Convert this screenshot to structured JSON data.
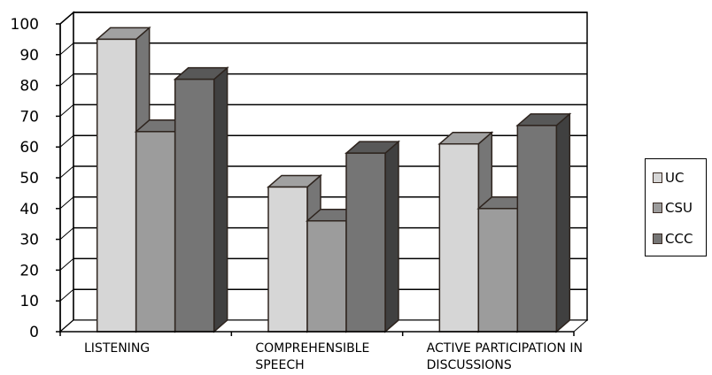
{
  "chart_data": {
    "type": "bar",
    "categories": [
      "LISTENING",
      "COMPREHENSIBLE SPEECH",
      "ACTIVE PARTICIPATION IN DISCUSSIONS"
    ],
    "category_label_lines": [
      [
        "LISTENING"
      ],
      [
        "COMPREHENSIBLE",
        "SPEECH"
      ],
      [
        "ACTIVE PARTICIPATION IN",
        "DISCUSSIONS"
      ]
    ],
    "series": [
      {
        "name": "UC",
        "values": [
          95,
          47,
          61
        ],
        "color": "#d6d6d6"
      },
      {
        "name": "CSU",
        "values": [
          65,
          36,
          40
        ],
        "color": "#9c9c9c"
      },
      {
        "name": "CCC",
        "values": [
          82,
          58,
          67
        ],
        "color": "#757575"
      }
    ],
    "ylim": [
      0,
      100
    ],
    "yticks": [
      "0",
      "10",
      "20",
      "30",
      "40",
      "50",
      "60",
      "70",
      "80",
      "90",
      "100"
    ],
    "grid": true,
    "legend_position": "right",
    "style": "3d"
  }
}
